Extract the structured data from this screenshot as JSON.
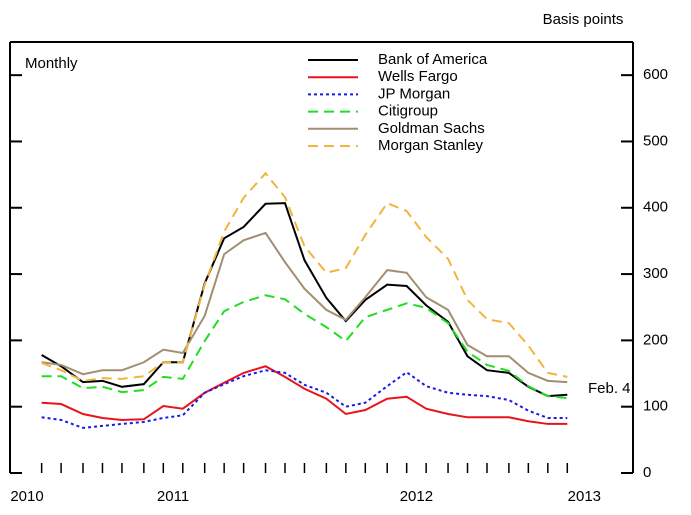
{
  "chart_data": {
    "type": "line",
    "annotations": {
      "frequency": "Monthly",
      "units": "Basis points",
      "end_date": "Feb. 4"
    },
    "x": [
      2010.96,
      2011.04,
      2011.13,
      2011.21,
      2011.29,
      2011.38,
      2011.46,
      2011.54,
      2011.63,
      2011.71,
      2011.79,
      2011.88,
      2011.96,
      2012.04,
      2012.13,
      2012.21,
      2012.29,
      2012.38,
      2012.46,
      2012.54,
      2012.63,
      2012.71,
      2012.79,
      2012.88,
      2012.96,
      2013.04,
      2013.12
    ],
    "xlim": [
      2010.83,
      2013.39
    ],
    "xticks": [
      {
        "value": 2010.9,
        "label": "2010"
      },
      {
        "value": 2011.5,
        "label": "2011"
      },
      {
        "value": 2012.5,
        "label": "2012"
      },
      {
        "value": 2013.19,
        "label": "2013"
      }
    ],
    "ylim": [
      0,
      650
    ],
    "yticks": [
      0,
      100,
      200,
      300,
      400,
      500,
      600
    ],
    "series": [
      {
        "name": "Bank of America",
        "color": "#000000",
        "dash": "none",
        "values": [
          178,
          161,
          137,
          139,
          130,
          134,
          167,
          167,
          286,
          354,
          371,
          406,
          407,
          321,
          264,
          229,
          261,
          284,
          282,
          253,
          228,
          176,
          155,
          151,
          130,
          116,
          118
        ]
      },
      {
        "name": "Wells Fargo",
        "color": "#e8141c",
        "dash": "none",
        "values": [
          106,
          104,
          89,
          83,
          80,
          81,
          101,
          97,
          121,
          136,
          151,
          161,
          145,
          127,
          112,
          89,
          95,
          112,
          115,
          97,
          89,
          84,
          84,
          84,
          78,
          74,
          74
        ]
      },
      {
        "name": "JP Morgan",
        "color": "#1a1ae6",
        "dash": "3,3",
        "values": [
          84,
          80,
          68,
          71,
          74,
          77,
          83,
          87,
          121,
          134,
          146,
          155,
          151,
          133,
          121,
          100,
          106,
          131,
          152,
          131,
          121,
          118,
          116,
          110,
          94,
          83,
          83
        ]
      },
      {
        "name": "Citigroup",
        "color": "#22dd22",
        "dash": "10,6",
        "values": [
          146,
          146,
          128,
          130,
          122,
          125,
          145,
          142,
          199,
          244,
          258,
          268,
          262,
          240,
          220,
          199,
          235,
          246,
          256,
          249,
          226,
          183,
          163,
          154,
          131,
          116,
          113
        ]
      },
      {
        "name": "Goldman Sachs",
        "color": "#a38e72",
        "dash": "none",
        "values": [
          167,
          163,
          149,
          155,
          155,
          167,
          186,
          181,
          237,
          330,
          351,
          362,
          318,
          278,
          246,
          231,
          265,
          306,
          302,
          265,
          246,
          193,
          176,
          176,
          151,
          139,
          137
        ]
      },
      {
        "name": "Morgan Stanley",
        "color": "#f2b43c",
        "dash": "10,6",
        "values": [
          166,
          155,
          139,
          143,
          142,
          146,
          167,
          167,
          284,
          364,
          415,
          452,
          416,
          342,
          302,
          309,
          359,
          407,
          395,
          356,
          323,
          261,
          232,
          226,
          192,
          151,
          145
        ]
      }
    ]
  }
}
